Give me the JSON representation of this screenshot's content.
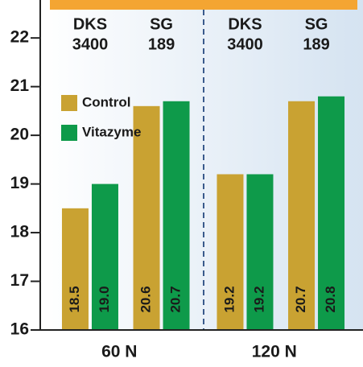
{
  "chart_data": {
    "type": "bar",
    "groups": [
      "60 N",
      "120 N"
    ],
    "categories": [
      [
        "DKS",
        "3400"
      ],
      [
        "SG",
        "189"
      ],
      [
        "DKS",
        "3400"
      ],
      [
        "SG",
        "189"
      ]
    ],
    "series": [
      {
        "name": "Control",
        "color": "#c9a232",
        "values": [
          18.5,
          20.6,
          19.2,
          20.7
        ],
        "value_labels": [
          "18.5",
          "20.6",
          "19.2",
          "20.7"
        ]
      },
      {
        "name": "Vitazyme",
        "color": "#0e9a4a",
        "values": [
          19.0,
          20.7,
          19.2,
          20.8
        ],
        "value_labels": [
          "19.0",
          "20.7",
          "19.2",
          "20.8"
        ]
      }
    ],
    "ylim": [
      16,
      22.78
    ],
    "yticks": [
      16,
      17,
      18,
      19,
      20,
      21,
      22
    ],
    "legend": "left"
  }
}
